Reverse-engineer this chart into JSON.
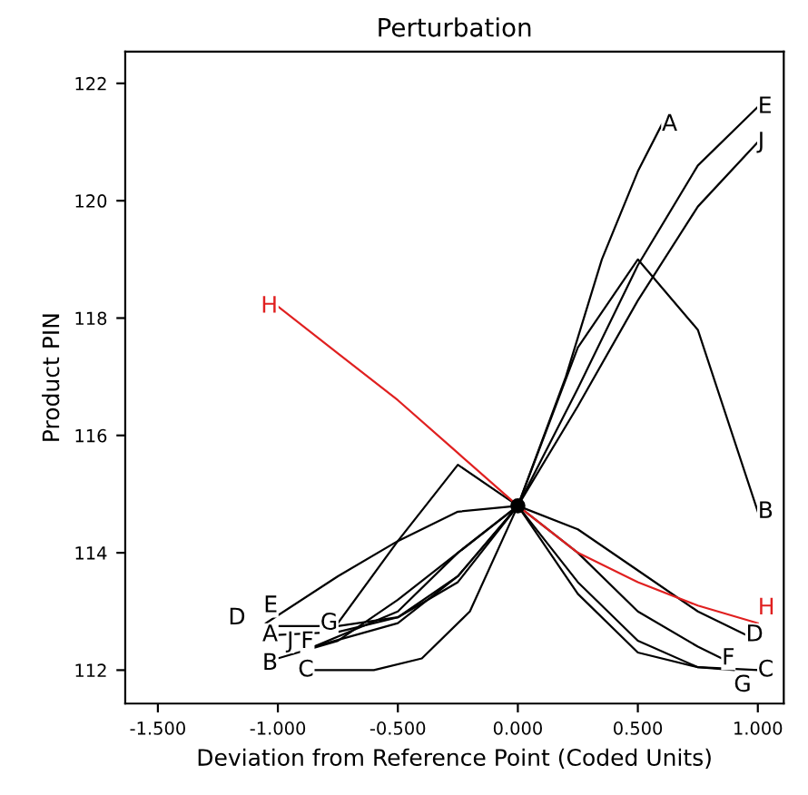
{
  "chart_data": {
    "type": "line",
    "title": "Perturbation",
    "xlabel": "Deviation from Reference Point (Coded Units)",
    "ylabel": "Product PIN",
    "xlim": [
      -1.636,
      1.108
    ],
    "ylim": [
      111.43,
      122.54
    ],
    "xticks": [
      {
        "value": -1.5,
        "label": "-1.500"
      },
      {
        "value": -1,
        "label": "-1.000"
      },
      {
        "value": -0.5,
        "label": "-0.500"
      },
      {
        "value": 0,
        "label": "0.000"
      },
      {
        "value": 0.5,
        "label": "0.500"
      },
      {
        "value": 1,
        "label": "1.000"
      }
    ],
    "yticks": [
      112,
      114,
      116,
      118,
      120,
      122
    ],
    "grid": false,
    "legend": false,
    "line_style": "solid",
    "series": [
      {
        "name": "A",
        "color": "#000000",
        "x": [
          -1,
          -0.75,
          -0.5,
          -0.25,
          0,
          0.2,
          0.35,
          0.5,
          0.6
        ],
        "values": [
          112.6,
          112.65,
          112.9,
          113.6,
          114.8,
          117.0,
          119.0,
          120.5,
          121.3
        ]
      },
      {
        "name": "B",
        "color": "#000000",
        "x": [
          -1,
          -0.75,
          -0.5,
          -0.25,
          0,
          0.25,
          0.5,
          0.75,
          1
        ],
        "values": [
          112.2,
          112.5,
          113.2,
          114.0,
          114.8,
          117.5,
          119.0,
          117.8,
          114.7
        ]
      },
      {
        "name": "C",
        "color": "#000000",
        "x": [
          -0.85,
          -0.6,
          -0.4,
          -0.2,
          0,
          0.25,
          0.5,
          0.75,
          1
        ],
        "values": [
          112.0,
          112.0,
          112.2,
          113.0,
          114.8,
          113.3,
          112.3,
          112.05,
          112.0
        ]
      },
      {
        "name": "D",
        "color": "#000000",
        "x": [
          -1.05,
          -0.75,
          -0.5,
          -0.25,
          0,
          0.25,
          0.5,
          0.75,
          0.95
        ],
        "values": [
          112.8,
          113.6,
          114.2,
          114.7,
          114.8,
          114.4,
          113.7,
          113.0,
          112.6
        ]
      },
      {
        "name": "E",
        "color": "#000000",
        "x": [
          -1,
          -0.75,
          -0.5,
          -0.25,
          0,
          0.25,
          0.5,
          0.75,
          1
        ],
        "values": [
          112.75,
          112.75,
          112.9,
          113.5,
          114.8,
          116.8,
          118.9,
          120.6,
          121.6
        ]
      },
      {
        "name": "F",
        "color": "#000000",
        "x": [
          -0.85,
          -0.5,
          -0.25,
          0,
          0.25,
          0.5,
          0.75,
          0.85
        ],
        "values": [
          112.4,
          113.0,
          114.0,
          114.8,
          114.0,
          113.0,
          112.4,
          112.2
        ]
      },
      {
        "name": "G",
        "color": "#000000",
        "x": [
          -0.75,
          -0.5,
          -0.25,
          0,
          0.25,
          0.5,
          0.75,
          0.9
        ],
        "values": [
          112.8,
          114.2,
          115.5,
          114.8,
          113.5,
          112.5,
          112.05,
          112.0
        ]
      },
      {
        "name": "H",
        "color": "#e02020",
        "x": [
          -1,
          -0.75,
          -0.5,
          -0.25,
          0,
          0.25,
          0.5,
          0.75,
          1
        ],
        "values": [
          118.2,
          117.4,
          116.6,
          115.7,
          114.8,
          114.0,
          113.5,
          113.1,
          112.8
        ]
      },
      {
        "name": "J",
        "color": "#000000",
        "x": [
          -0.85,
          -0.5,
          -0.25,
          0,
          0.25,
          0.5,
          0.75,
          1
        ],
        "values": [
          112.4,
          112.8,
          113.6,
          114.8,
          116.5,
          118.3,
          119.9,
          121.0
        ]
      },
      {
        "type": "scatter",
        "color": "#000000",
        "marker": "circle",
        "x": [
          0
        ],
        "values": [
          114.8
        ]
      }
    ]
  }
}
